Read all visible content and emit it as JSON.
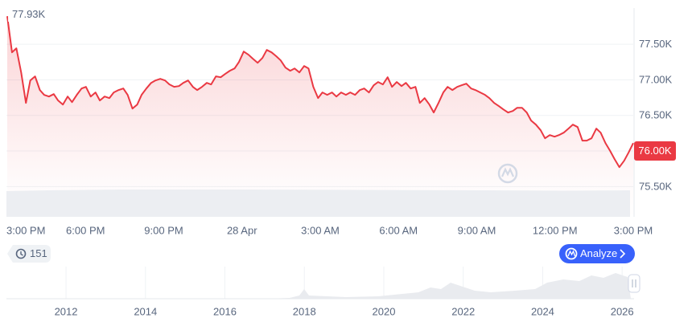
{
  "chart_data": {
    "type": "line",
    "color": "#ea3943",
    "grid": true,
    "watermark": "CoinMarketCap",
    "high": {
      "value": 77930,
      "label": "77.93K"
    },
    "highlight_tick": 3,
    "xlim": [
      0,
      1440
    ],
    "xticks": [
      {
        "value": 0,
        "label": "3:00 PM"
      },
      {
        "value": 180,
        "label": "6:00 PM"
      },
      {
        "value": 360,
        "label": "9:00 PM"
      },
      {
        "value": 540,
        "label": "28 Apr"
      },
      {
        "value": 720,
        "label": "3:00 AM"
      },
      {
        "value": 900,
        "label": "6:00 AM"
      },
      {
        "value": 1080,
        "label": "9:00 AM"
      },
      {
        "value": 1260,
        "label": "12:00 PM"
      },
      {
        "value": 1440,
        "label": "3:00 PM"
      }
    ],
    "ylim": [
      75075,
      78010
    ],
    "yticks": [
      {
        "value": 77500,
        "label": "77.50K"
      },
      {
        "value": 77000,
        "label": "77.00K"
      },
      {
        "value": 76500,
        "label": "76.50K"
      },
      {
        "value": 76000,
        "label": "76.00K"
      },
      {
        "value": 75500,
        "label": "75.50K"
      }
    ],
    "x": [
      0,
      11,
      21,
      32,
      43,
      53,
      64,
      75,
      85,
      96,
      107,
      117,
      128,
      139,
      149,
      160,
      171,
      181,
      192,
      203,
      213,
      224,
      235,
      245,
      256,
      267,
      277,
      288,
      299,
      309,
      320,
      331,
      341,
      352,
      363,
      373,
      384,
      395,
      405,
      416,
      427,
      437,
      448,
      459,
      469,
      480,
      491,
      501,
      512,
      523,
      533,
      544,
      555,
      565,
      576,
      587,
      597,
      608,
      619,
      629,
      640,
      651,
      661,
      672,
      683,
      693,
      704,
      715,
      725,
      736,
      747,
      757,
      768,
      779,
      789,
      800,
      811,
      821,
      832,
      843,
      853,
      864,
      875,
      885,
      896,
      907,
      917,
      928,
      939,
      949,
      960,
      971,
      981,
      992,
      1003,
      1013,
      1024,
      1035,
      1045,
      1056,
      1067,
      1077,
      1088,
      1099,
      1109,
      1120,
      1131,
      1141,
      1152,
      1163,
      1173,
      1184,
      1195,
      1205,
      1216,
      1227,
      1237,
      1248,
      1259,
      1269,
      1280,
      1291,
      1301,
      1312,
      1323,
      1333,
      1344,
      1355,
      1365,
      1376,
      1387,
      1397,
      1408,
      1419,
      1429,
      1440
    ],
    "values": [
      77895,
      77387,
      77444,
      77105,
      76676,
      76992,
      77049,
      76857,
      76789,
      76766,
      76800,
      76710,
      76653,
      76766,
      76687,
      76789,
      76879,
      76902,
      76766,
      76823,
      76710,
      76766,
      76744,
      76823,
      76857,
      76879,
      76789,
      76597,
      76653,
      76789,
      76879,
      76958,
      76992,
      77015,
      76992,
      76936,
      76902,
      76913,
      76958,
      76992,
      76902,
      76857,
      76902,
      76958,
      76936,
      77049,
      77037,
      77082,
      77128,
      77161,
      77252,
      77398,
      77353,
      77297,
      77240,
      77308,
      77421,
      77387,
      77331,
      77274,
      77173,
      77128,
      77161,
      77105,
      77195,
      77161,
      76902,
      76744,
      76823,
      76789,
      76823,
      76766,
      76823,
      76789,
      76823,
      76789,
      76857,
      76879,
      76823,
      76924,
      76970,
      76936,
      77037,
      76902,
      76970,
      76913,
      76958,
      76879,
      76902,
      76676,
      76744,
      76653,
      76541,
      76676,
      76823,
      76902,
      76857,
      76902,
      76924,
      76947,
      76879,
      76857,
      76823,
      76789,
      76744,
      76676,
      76631,
      76586,
      76541,
      76563,
      76608,
      76608,
      76541,
      76428,
      76371,
      76292,
      76179,
      76224,
      76202,
      76224,
      76258,
      76315,
      76371,
      76337,
      76146,
      76146,
      76179,
      76315,
      76258,
      76112,
      75999,
      75886,
      75773,
      75863,
      75976,
      76112
    ]
  },
  "history_badge": "151",
  "analyze_button": "Analyze",
  "navigator": {
    "xlim": [
      2010.5,
      2026.3
    ],
    "xticks": [
      2012,
      2014,
      2016,
      2018,
      2020,
      2022,
      2024,
      2026
    ]
  }
}
